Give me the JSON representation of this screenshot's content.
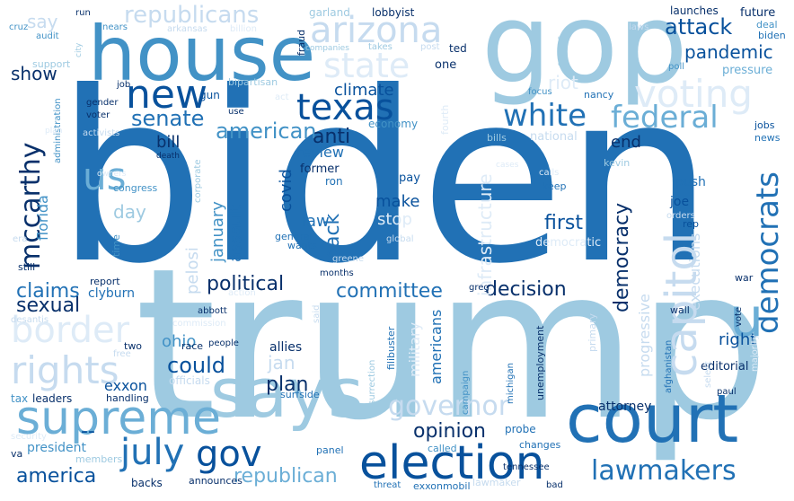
{
  "colors": {
    "background": "#ffffff",
    "c1": "#08306b",
    "c2": "#08519c",
    "c3": "#2171b5",
    "c4": "#4292c6",
    "c5": "#6baed6",
    "c6": "#9ecae1",
    "c7": "#c6dbef",
    "c8": "#deebf7"
  },
  "words": [
    "biden",
    "trump",
    "gop",
    "house",
    "says",
    "court",
    "election",
    "supreme",
    "arizona",
    "voting",
    "state",
    "texas",
    "new",
    "white",
    "federal",
    "rights",
    "border",
    "july",
    "gov",
    "governor",
    "lawmakers",
    "capitol",
    "democrats",
    "mccarthy",
    "republicans",
    "senate",
    "american",
    "pandemic",
    "attack",
    "anti",
    "claims",
    "sexual",
    "could",
    "plan",
    "opinion",
    "america",
    "republican",
    "democracy",
    "committee",
    "decision",
    "political",
    "first",
    "end",
    "climate",
    "infrastructure",
    "show",
    "say",
    "bill",
    "day",
    "review",
    "law",
    "covid",
    "back",
    "make",
    "stop",
    "january",
    "assault",
    "pelosi",
    "florida",
    "us",
    "u",
    "--",
    "president",
    "exxon",
    "ohio",
    "jan",
    "americans",
    "right",
    "executions",
    "progressive",
    "military",
    "attorney",
    "editorial",
    "future",
    "deal",
    "biden",
    "launches",
    "poll",
    "pressure",
    "jobs",
    "news",
    "riot",
    "nancy",
    "focus",
    "national",
    "bills",
    "kevin",
    "calls",
    "keep",
    "push",
    "joe",
    "orders",
    "rep",
    "democratic",
    "war",
    "wall",
    "vote",
    "majority",
    "paul",
    "select",
    "afghanistan",
    "official",
    "primary",
    "unemployment",
    "campaign",
    "michigan",
    "filibuster",
    "insurrection",
    "surfside",
    "probe",
    "changes",
    "called",
    "panel",
    "lawmaker",
    "bad",
    "exxonmobil",
    "tennessee",
    "threat",
    "announces",
    "backs",
    "members",
    "va",
    "security",
    "leaders",
    "tax",
    "handling",
    "officials",
    "free",
    "two",
    "race",
    "people",
    "allies",
    "abbott",
    "commission",
    "desantis",
    "clyburn",
    "report",
    "still",
    "action",
    "months",
    "said",
    "greg",
    "general",
    "wants",
    "greene",
    "global",
    "ron",
    "former",
    "pay",
    "economy",
    "fourth",
    "city",
    "garland",
    "lobbyist",
    "fraud",
    "ted",
    "one",
    "post",
    "takes",
    "companies",
    "billion",
    "arkansas",
    "run",
    "nears",
    "cruz",
    "audit",
    "support",
    "job",
    "gender",
    "voter",
    "administration",
    "activists",
    "bipartisan",
    "gun",
    "use",
    "act",
    "death",
    "corporate",
    "owners",
    "congress",
    "time",
    "era",
    "plan",
    "laws",
    "groups",
    "cases"
  ]
}
